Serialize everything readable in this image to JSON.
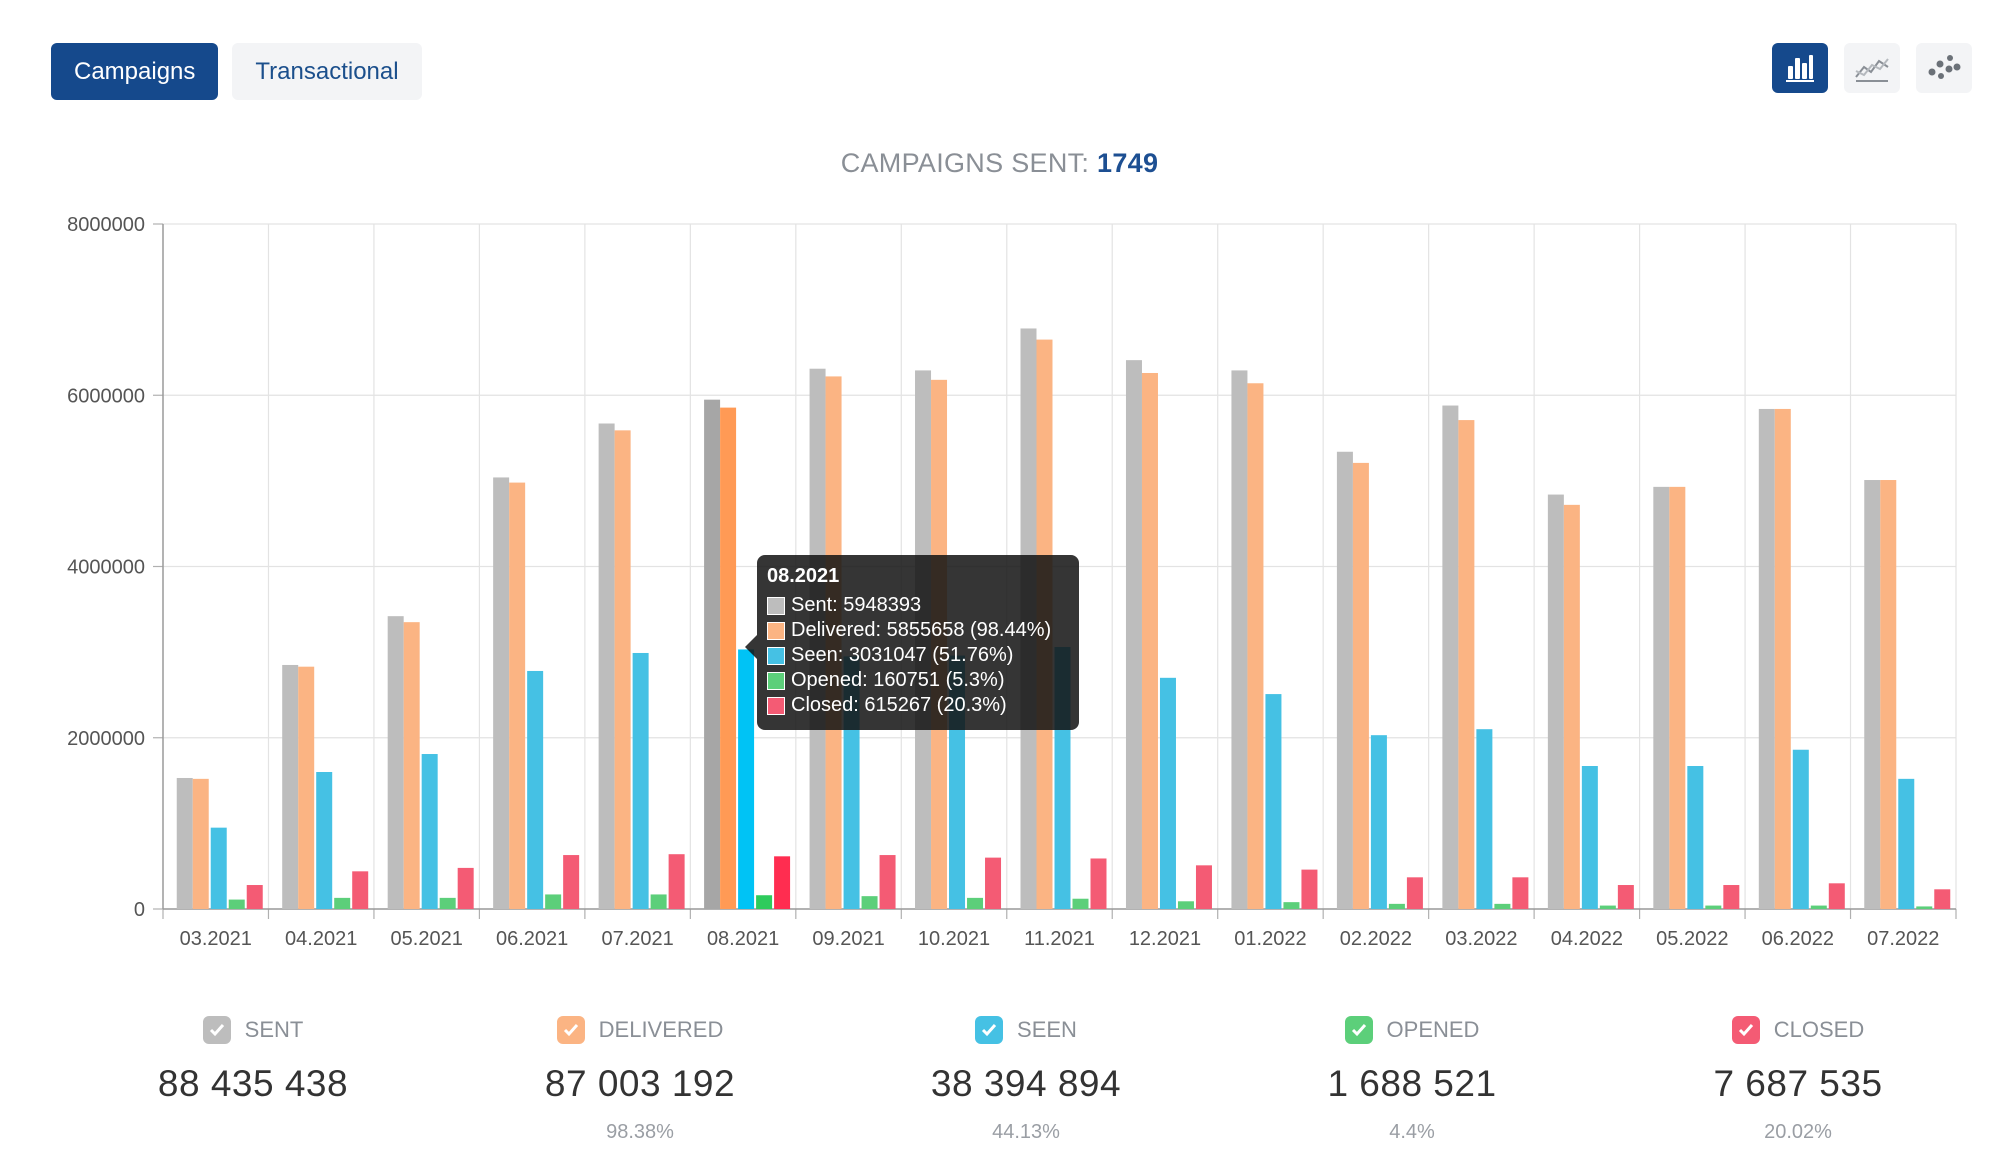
{
  "tabs": [
    {
      "label": "Campaigns",
      "active": true
    },
    {
      "label": "Transactional",
      "active": false
    }
  ],
  "view_switch": [
    {
      "icon": "bar-chart-icon",
      "active": true
    },
    {
      "icon": "line-chart-icon",
      "active": false
    },
    {
      "icon": "scatter-chart-icon",
      "active": false
    }
  ],
  "header": {
    "label": "CAMPAIGNS SENT:",
    "count": "1749"
  },
  "chart_data": {
    "type": "bar",
    "categories": [
      "03.2021",
      "04.2021",
      "05.2021",
      "06.2021",
      "07.2021",
      "08.2021",
      "09.2021",
      "10.2021",
      "11.2021",
      "12.2021",
      "01.2022",
      "02.2022",
      "03.2022",
      "04.2022",
      "05.2022",
      "06.2022",
      "07.2022"
    ],
    "ylim": [
      0,
      8000000
    ],
    "yticks": [
      0,
      2000000,
      4000000,
      6000000,
      8000000
    ],
    "grid": true,
    "series": [
      {
        "name": "Sent",
        "color": "#bdbdbd",
        "values": [
          1530000,
          2850000,
          3420000,
          5040000,
          5670000,
          5948393,
          6310000,
          6290000,
          6780000,
          6410000,
          6290000,
          5340000,
          5880000,
          4840000,
          4930000,
          5840000,
          5010000
        ]
      },
      {
        "name": "Delivered",
        "color": "#fbb483",
        "values": [
          1520000,
          2830000,
          3350000,
          4980000,
          5590000,
          5855658,
          6220000,
          6180000,
          6650000,
          6260000,
          6140000,
          5210000,
          5710000,
          4720000,
          4930000,
          5840000,
          5010000
        ]
      },
      {
        "name": "Seen",
        "color": "#45c1e4",
        "values": [
          950000,
          1600000,
          1810000,
          2780000,
          2990000,
          3031047,
          2950000,
          2960000,
          3060000,
          2700000,
          2510000,
          2030000,
          2100000,
          1670000,
          1670000,
          1860000,
          1520000
        ]
      },
      {
        "name": "Opened",
        "color": "#5ccf7a",
        "values": [
          110000,
          130000,
          130000,
          170000,
          170000,
          160751,
          150000,
          130000,
          120000,
          90000,
          80000,
          60000,
          60000,
          40000,
          40000,
          40000,
          30000
        ]
      },
      {
        "name": "Closed",
        "color": "#f45b74",
        "values": [
          280000,
          440000,
          480000,
          630000,
          640000,
          615267,
          630000,
          600000,
          590000,
          510000,
          460000,
          370000,
          370000,
          280000,
          280000,
          300000,
          230000
        ]
      }
    ],
    "highlight_index": 5,
    "highlight_colors": [
      "#a6a6a6",
      "#ff9a55",
      "#00c3f5",
      "#2ecb5c",
      "#ff2d50"
    ],
    "tooltip": {
      "title": "08.2021",
      "rows": [
        {
          "color": "#bdbdbd",
          "text": "Sent: 5948393"
        },
        {
          "color": "#fbb483",
          "text": "Delivered: 5855658 (98.44%)"
        },
        {
          "color": "#45c1e4",
          "text": "Seen: 3031047 (51.76%)"
        },
        {
          "color": "#5ccf7a",
          "text": "Opened: 160751 (5.3%)"
        },
        {
          "color": "#f45b74",
          "text": "Closed: 615267 (20.3%)"
        }
      ]
    }
  },
  "stats": [
    {
      "name": "SENT",
      "total": "88 435 438",
      "pct": "",
      "color": "#bdbdbd"
    },
    {
      "name": "DELIVERED",
      "total": "87 003 192",
      "pct": "98.38%",
      "color": "#fbb483"
    },
    {
      "name": "SEEN",
      "total": "38 394 894",
      "pct": "44.13%",
      "color": "#45c1e4"
    },
    {
      "name": "OPENED",
      "total": "1 688 521",
      "pct": "4.4%",
      "color": "#5ccf7a"
    },
    {
      "name": "CLOSED",
      "total": "7 687 535",
      "pct": "20.02%",
      "color": "#f45b74"
    }
  ]
}
